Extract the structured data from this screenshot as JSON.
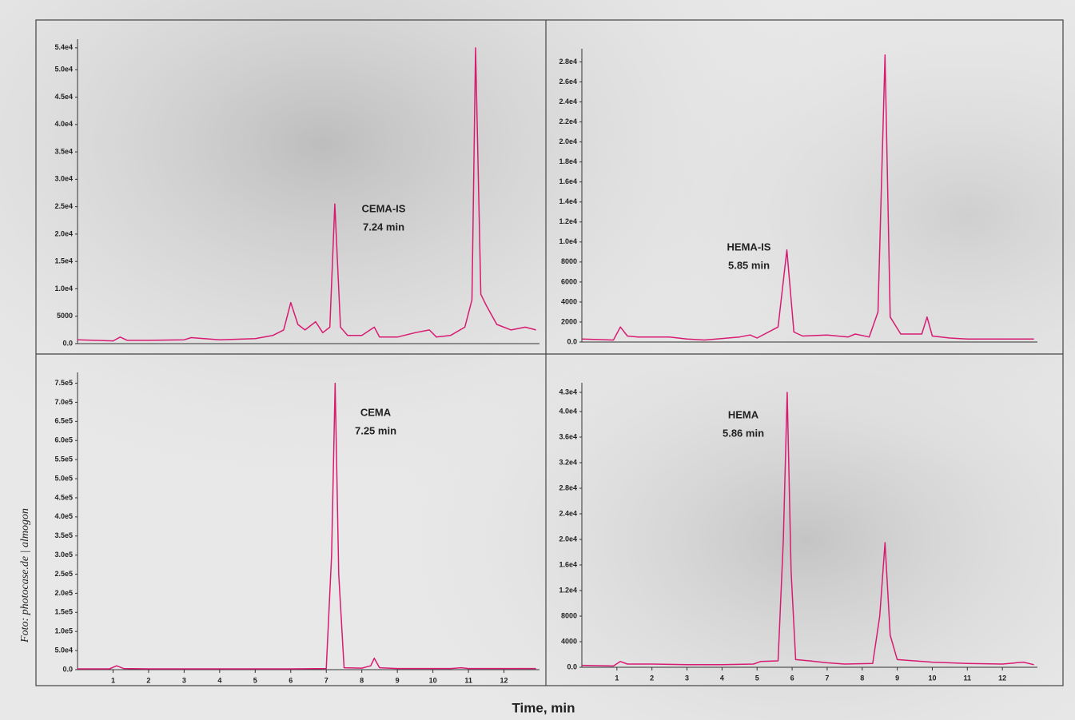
{
  "credit": "Foto: photocase.de | almogon",
  "axis_label": "Time, min",
  "chart_data": [
    {
      "type": "line",
      "color": "#d81b72",
      "annotation": [
        "CEMA-IS",
        "7.24 min"
      ],
      "xlim": [
        0,
        13
      ],
      "ylim": [
        0,
        55000
      ],
      "yticks": [
        {
          "value": 0,
          "label": "0.0"
        },
        5000,
        {
          "value": 10000,
          "label": "1.0e4"
        },
        {
          "value": 15000,
          "label": "1.5e4"
        },
        {
          "value": 20000,
          "label": "2.0e4"
        },
        {
          "value": 25000,
          "label": "2.5e4"
        },
        {
          "value": 30000,
          "label": "3.0e4"
        },
        {
          "value": 35000,
          "label": "3.5e4"
        },
        {
          "value": 40000,
          "label": "4.0e4"
        },
        {
          "value": 45000,
          "label": "4.5e4"
        },
        {
          "value": 50000,
          "label": "5.0e4"
        },
        {
          "value": 54000,
          "label": "5.4e4"
        }
      ],
      "x": [
        0,
        0.5,
        1.0,
        1.2,
        1.4,
        2,
        3,
        3.2,
        4,
        5,
        5.5,
        5.8,
        6.0,
        6.2,
        6.4,
        6.7,
        6.9,
        7.1,
        7.24,
        7.4,
        7.6,
        8.0,
        8.35,
        8.5,
        9,
        9.5,
        9.9,
        10.1,
        10.5,
        10.9,
        11.1,
        11.2,
        11.35,
        11.5,
        11.8,
        12.2,
        12.6,
        12.9
      ],
      "values": [
        700,
        600,
        500,
        1200,
        600,
        600,
        700,
        1100,
        700,
        900,
        1500,
        2500,
        7500,
        3500,
        2500,
        4000,
        2000,
        3000,
        25500,
        3000,
        1500,
        1500,
        3000,
        1200,
        1200,
        2000,
        2500,
        1200,
        1500,
        3000,
        8000,
        54000,
        9000,
        7000,
        3500,
        2500,
        3000,
        2500
      ]
    },
    {
      "type": "line",
      "color": "#d81b72",
      "annotation": [
        "HEMA-IS",
        "5.85 min"
      ],
      "xlim": [
        0,
        13
      ],
      "ylim": [
        0,
        29000
      ],
      "yticks": [
        {
          "value": 0,
          "label": "0.0"
        },
        2000,
        4000,
        6000,
        8000,
        {
          "value": 10000,
          "label": "1.0e4"
        },
        {
          "value": 12000,
          "label": "1.2e4"
        },
        {
          "value": 14000,
          "label": "1.4e4"
        },
        {
          "value": 16000,
          "label": "1.6e4"
        },
        {
          "value": 18000,
          "label": "1.8e4"
        },
        {
          "value": 20000,
          "label": "2.0e4"
        },
        {
          "value": 22000,
          "label": "2.2e4"
        },
        {
          "value": 24000,
          "label": "2.4e4"
        },
        {
          "value": 26000,
          "label": "2.6e4"
        },
        {
          "value": 28000,
          "label": "2.8e4"
        }
      ],
      "x": [
        0,
        0.9,
        1.1,
        1.3,
        1.6,
        2.5,
        3,
        3.5,
        4.5,
        4.8,
        5,
        5.6,
        5.85,
        6.05,
        6.3,
        7,
        7.6,
        7.8,
        8.2,
        8.45,
        8.65,
        8.8,
        9.1,
        9.7,
        9.85,
        10,
        10.5,
        11,
        12,
        12.9
      ],
      "values": [
        300,
        200,
        1500,
        600,
        500,
        500,
        300,
        200,
        500,
        700,
        400,
        1500,
        9200,
        1000,
        600,
        700,
        500,
        800,
        500,
        3000,
        28700,
        2500,
        800,
        800,
        2500,
        600,
        400,
        300,
        300,
        300
      ]
    },
    {
      "type": "line",
      "color": "#d81b72",
      "annotation": [
        "CEMA",
        "7.25 min"
      ],
      "xlim": [
        0,
        13
      ],
      "ylim": [
        0,
        770000
      ],
      "xticks": [
        1,
        2,
        3,
        4,
        5,
        6,
        7,
        8,
        9,
        10,
        11,
        12
      ],
      "yticks": [
        {
          "value": 0,
          "label": "0.0"
        },
        {
          "value": 50000,
          "label": "5.0e4"
        },
        {
          "value": 100000,
          "label": "1.0e5"
        },
        {
          "value": 150000,
          "label": "1.5e5"
        },
        {
          "value": 200000,
          "label": "2.0e5"
        },
        {
          "value": 250000,
          "label": "2.5e5"
        },
        {
          "value": 300000,
          "label": "3.0e5"
        },
        {
          "value": 350000,
          "label": "3.5e5"
        },
        {
          "value": 400000,
          "label": "4.0e5"
        },
        {
          "value": 450000,
          "label": "4.5e5"
        },
        {
          "value": 500000,
          "label": "5.0e5"
        },
        {
          "value": 550000,
          "label": "5.5e5"
        },
        {
          "value": 600000,
          "label": "6.0e5"
        },
        {
          "value": 650000,
          "label": "6.5e5"
        },
        {
          "value": 700000,
          "label": "7.0e5"
        },
        {
          "value": 750000,
          "label": "7.5e5"
        }
      ],
      "x": [
        0,
        0.9,
        1.1,
        1.3,
        2,
        4,
        6,
        7.0,
        7.15,
        7.25,
        7.35,
        7.5,
        8.0,
        8.25,
        8.35,
        8.5,
        9,
        10.5,
        10.8,
        11,
        12.9
      ],
      "values": [
        2000,
        2000,
        10000,
        3000,
        2000,
        2000,
        2000,
        3000,
        300000,
        750000,
        250000,
        5000,
        4000,
        10000,
        30000,
        5000,
        3000,
        3000,
        5000,
        3000,
        3000
      ]
    },
    {
      "type": "line",
      "color": "#d81b72",
      "annotation": [
        "HEMA",
        "5.86 min"
      ],
      "xlim": [
        0,
        13
      ],
      "ylim": [
        0,
        44000
      ],
      "xticks": [
        1,
        2,
        3,
        4,
        5,
        6,
        7,
        8,
        9,
        10,
        11,
        12
      ],
      "yticks": [
        {
          "value": 0,
          "label": "0.0"
        },
        4000,
        8000,
        {
          "value": 12000,
          "label": "1.2e4"
        },
        {
          "value": 16000,
          "label": "1.6e4"
        },
        {
          "value": 20000,
          "label": "2.0e4"
        },
        {
          "value": 24000,
          "label": "2.4e4"
        },
        {
          "value": 28000,
          "label": "2.8e4"
        },
        {
          "value": 32000,
          "label": "3.2e4"
        },
        {
          "value": 36000,
          "label": "3.6e4"
        },
        {
          "value": 40000,
          "label": "4.0e4"
        },
        {
          "value": 43000,
          "label": "4.3e4"
        }
      ],
      "x": [
        0,
        0.9,
        1.1,
        1.3,
        2,
        3,
        4,
        4.9,
        5.1,
        5.6,
        5.75,
        5.86,
        5.97,
        6.1,
        6.5,
        7,
        7.5,
        8.3,
        8.5,
        8.65,
        8.8,
        9.0,
        9.5,
        10,
        11,
        12,
        12.6,
        12.9
      ],
      "values": [
        300,
        200,
        900,
        500,
        500,
        400,
        400,
        500,
        900,
        1000,
        20000,
        43000,
        15000,
        1200,
        1000,
        700,
        500,
        600,
        8000,
        19500,
        5000,
        1200,
        1000,
        800,
        600,
        500,
        800,
        400
      ]
    }
  ]
}
